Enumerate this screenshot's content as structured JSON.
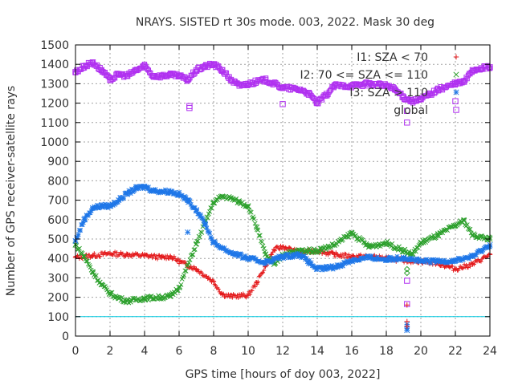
{
  "chart_data": {
    "type": "scatter",
    "title": "NRAYS. SISTED rt 30s mode. 003, 2022. Mask 30 deg",
    "xlabel": "GPS time [hours of doy 003, 2022]",
    "ylabel": "Number of GPS receiver-satellite rays",
    "xlim": [
      0,
      24
    ],
    "ylim": [
      0,
      1500
    ],
    "x_ticks": [
      "0",
      "2",
      "4",
      "6",
      "8",
      "10",
      "12",
      "14",
      "16",
      "18",
      "20",
      "22",
      "24"
    ],
    "y_ticks": [
      "0",
      "100",
      "200",
      "300",
      "400",
      "500",
      "600",
      "700",
      "800",
      "900",
      "1000",
      "1100",
      "1200",
      "1300",
      "1400",
      "1500"
    ],
    "grid": true,
    "legend_position": "top-right",
    "reference_line": {
      "y": 100,
      "color": "#00c8e0"
    },
    "series": [
      {
        "name": "I1: SZA < 70",
        "color": "#e41a1c",
        "marker": "plus",
        "x": [
          0,
          1,
          2,
          3,
          4,
          5,
          5.5,
          6,
          7,
          8,
          8.5,
          9,
          10,
          10.5,
          11,
          11.5,
          12,
          13,
          14,
          15,
          16,
          17,
          18,
          19,
          20,
          21,
          22,
          23,
          24
        ],
        "y": [
          405,
          415,
          425,
          420,
          415,
          405,
          410,
          385,
          345,
          280,
          215,
          205,
          210,
          275,
          360,
          445,
          460,
          430,
          440,
          420,
          410,
          410,
          400,
          390,
          385,
          375,
          345,
          370,
          420
        ]
      },
      {
        "name": "I2: 70 <= SZA <= 110",
        "color": "#2ca02c",
        "marker": "x",
        "x": [
          0,
          0.5,
          1,
          1.5,
          2,
          2.5,
          3,
          4,
          5,
          5.5,
          6,
          7,
          8,
          8.5,
          9,
          9.5,
          10,
          10.5,
          11,
          11.5,
          12,
          13,
          14,
          15,
          16,
          17,
          18,
          19,
          19.5,
          20,
          21,
          22,
          22.5,
          23,
          24
        ],
        "y": [
          470,
          410,
          330,
          265,
          220,
          195,
          180,
          195,
          200,
          205,
          250,
          475,
          690,
          720,
          710,
          690,
          670,
          560,
          420,
          370,
          420,
          440,
          440,
          470,
          530,
          460,
          480,
          440,
          420,
          480,
          520,
          570,
          595,
          520,
          500
        ]
      },
      {
        "name": "I3: SZA > 110",
        "color": "#1f77e8",
        "marker": "star",
        "x": [
          0,
          0.5,
          1,
          1.5,
          2,
          2.5,
          3,
          3.5,
          4,
          4.5,
          5,
          5.5,
          6,
          6.5,
          7,
          7.5,
          8,
          9,
          10,
          11,
          12,
          13,
          14,
          15,
          16,
          17,
          18,
          19,
          20,
          21,
          22,
          23,
          24
        ],
        "y": [
          490,
          600,
          660,
          670,
          670,
          700,
          735,
          760,
          770,
          750,
          745,
          745,
          730,
          700,
          650,
          580,
          480,
          430,
          400,
          380,
          410,
          420,
          345,
          355,
          390,
          405,
          395,
          405,
          385,
          385,
          390,
          410,
          470
        ]
      },
      {
        "name": "global",
        "color": "#b030f0",
        "marker": "square",
        "x": [
          0,
          0.5,
          1,
          1.5,
          2,
          2.5,
          3,
          3.5,
          4,
          4.5,
          5,
          5.5,
          6,
          6.5,
          7,
          7.5,
          8,
          8.5,
          9,
          9.5,
          10,
          11,
          12,
          13,
          13.5,
          14,
          14.5,
          15,
          16,
          17,
          18,
          18.5,
          19,
          19.5,
          20,
          21,
          22,
          22.5,
          23,
          23.5,
          24
        ],
        "y": [
          1360,
          1390,
          1410,
          1370,
          1320,
          1350,
          1340,
          1370,
          1390,
          1340,
          1340,
          1345,
          1340,
          1320,
          1370,
          1390,
          1400,
          1370,
          1320,
          1290,
          1300,
          1320,
          1280,
          1270,
          1250,
          1200,
          1240,
          1290,
          1290,
          1300,
          1290,
          1270,
          1230,
          1210,
          1220,
          1270,
          1300,
          1310,
          1370,
          1380,
          1385
        ]
      }
    ],
    "outliers": [
      {
        "series": "global",
        "x": 6.6,
        "y": 1175
      },
      {
        "series": "global",
        "x": 6.6,
        "y": 1185
      },
      {
        "series": "global",
        "x": 12.0,
        "y": 1195
      },
      {
        "series": "global",
        "x": 19.2,
        "y": 1160
      },
      {
        "series": "global",
        "x": 19.2,
        "y": 1100
      },
      {
        "series": "global",
        "x": 19.2,
        "y": 285
      },
      {
        "series": "global",
        "x": 19.2,
        "y": 165
      },
      {
        "series": "global",
        "x": 22.0,
        "y": 1210
      },
      {
        "series": "I3: SZA > 110",
        "x": 6.5,
        "y": 535
      },
      {
        "series": "I3: SZA > 110",
        "x": 19.2,
        "y": 60
      },
      {
        "series": "I3: SZA > 110",
        "x": 19.2,
        "y": 40
      },
      {
        "series": "I3: SZA > 110",
        "x": 19.2,
        "y": 30
      },
      {
        "series": "I2: 70 <= SZA <= 110",
        "x": 19.2,
        "y": 325
      },
      {
        "series": "I2: 70 <= SZA <= 110",
        "x": 19.2,
        "y": 345
      },
      {
        "series": "I1: SZA < 70",
        "x": 19.2,
        "y": 160
      },
      {
        "series": "I1: SZA < 70",
        "x": 19.2,
        "y": 75
      },
      {
        "series": "I1: SZA < 70",
        "x": 19.2,
        "y": 50
      }
    ],
    "legend": [
      {
        "label": "I1: SZA < 70",
        "color": "#e41a1c",
        "marker": "plus"
      },
      {
        "label": "I2: 70 <= SZA <= 110",
        "color": "#2ca02c",
        "marker": "x"
      },
      {
        "label": "I3: SZA > 110",
        "color": "#1f77e8",
        "marker": "star"
      },
      {
        "label": "global",
        "color": "#b030f0",
        "marker": "square"
      }
    ]
  }
}
